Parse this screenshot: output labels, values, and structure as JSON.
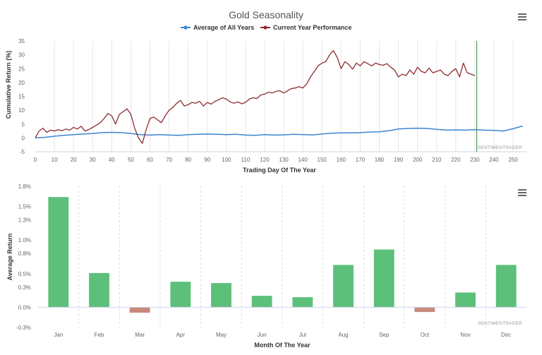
{
  "chart_data": [
    {
      "type": "line",
      "title": "Gold Seasonality",
      "xlabel": "Trading Day Of The Year",
      "ylabel": "Cumulative Return (%)",
      "xlim": [
        0,
        257
      ],
      "ylim": [
        -5,
        35
      ],
      "x_ticks": [
        0,
        10,
        20,
        30,
        40,
        50,
        60,
        70,
        80,
        90,
        100,
        110,
        120,
        130,
        140,
        150,
        160,
        170,
        180,
        190,
        200,
        210,
        220,
        230,
        240,
        250
      ],
      "y_ticks": [
        -5,
        0,
        5,
        10,
        15,
        20,
        25,
        30,
        35
      ],
      "grid": "vertical",
      "legend": "top-center",
      "credit": "SENTIMENTRADER",
      "marker_line_x": 231,
      "series": [
        {
          "name": "Average of All Years",
          "color": "#3a85d0",
          "points": [
            [
              0,
              0
            ],
            [
              5,
              0.2
            ],
            [
              10,
              0.6
            ],
            [
              15,
              0.9
            ],
            [
              20,
              1.2
            ],
            [
              25,
              1.4
            ],
            [
              30,
              1.6
            ],
            [
              35,
              1.9
            ],
            [
              40,
              2.0
            ],
            [
              45,
              1.9
            ],
            [
              50,
              1.6
            ],
            [
              55,
              1.2
            ],
            [
              60,
              1.0
            ],
            [
              65,
              1.2
            ],
            [
              70,
              1.0
            ],
            [
              75,
              0.9
            ],
            [
              80,
              1.2
            ],
            [
              85,
              1.3
            ],
            [
              90,
              1.4
            ],
            [
              95,
              1.3
            ],
            [
              100,
              1.2
            ],
            [
              105,
              1.3
            ],
            [
              110,
              1.0
            ],
            [
              115,
              0.9
            ],
            [
              120,
              1.2
            ],
            [
              125,
              1.0
            ],
            [
              130,
              1.1
            ],
            [
              135,
              1.3
            ],
            [
              140,
              1.2
            ],
            [
              145,
              1.1
            ],
            [
              150,
              1.4
            ],
            [
              155,
              1.7
            ],
            [
              160,
              1.8
            ],
            [
              165,
              1.8
            ],
            [
              170,
              1.9
            ],
            [
              175,
              2.1
            ],
            [
              180,
              2.2
            ],
            [
              185,
              2.6
            ],
            [
              190,
              3.2
            ],
            [
              195,
              3.4
            ],
            [
              200,
              3.5
            ],
            [
              205,
              3.4
            ],
            [
              210,
              3.1
            ],
            [
              215,
              2.8
            ],
            [
              220,
              2.9
            ],
            [
              225,
              2.8
            ],
            [
              230,
              3.0
            ],
            [
              235,
              2.8
            ],
            [
              240,
              2.7
            ],
            [
              245,
              2.5
            ],
            [
              250,
              3.3
            ],
            [
              255,
              4.3
            ]
          ]
        },
        {
          "name": "Current Year Performance",
          "color": "#8b2d30",
          "points": [
            [
              0,
              0
            ],
            [
              2,
              2.5
            ],
            [
              4,
              3.5
            ],
            [
              6,
              2.0
            ],
            [
              8,
              2.8
            ],
            [
              10,
              2.5
            ],
            [
              12,
              3.0
            ],
            [
              14,
              2.6
            ],
            [
              16,
              3.2
            ],
            [
              18,
              2.8
            ],
            [
              20,
              3.8
            ],
            [
              22,
              3.2
            ],
            [
              24,
              4.2
            ],
            [
              26,
              2.5
            ],
            [
              28,
              3.0
            ],
            [
              30,
              3.8
            ],
            [
              32,
              4.6
            ],
            [
              34,
              5.5
            ],
            [
              36,
              7.0
            ],
            [
              38,
              8.8
            ],
            [
              40,
              8.0
            ],
            [
              42,
              5.0
            ],
            [
              44,
              8.5
            ],
            [
              46,
              9.5
            ],
            [
              48,
              10.5
            ],
            [
              50,
              8.5
            ],
            [
              52,
              3.5
            ],
            [
              54,
              0.0
            ],
            [
              56,
              -2.0
            ],
            [
              58,
              3.0
            ],
            [
              60,
              7.0
            ],
            [
              62,
              7.5
            ],
            [
              64,
              6.5
            ],
            [
              66,
              5.5
            ],
            [
              68,
              8.0
            ],
            [
              70,
              10.0
            ],
            [
              72,
              11.0
            ],
            [
              74,
              12.5
            ],
            [
              76,
              13.5
            ],
            [
              78,
              11.5
            ],
            [
              80,
              12.0
            ],
            [
              82,
              12.8
            ],
            [
              84,
              12.5
            ],
            [
              86,
              13.2
            ],
            [
              88,
              11.5
            ],
            [
              90,
              12.8
            ],
            [
              92,
              12.2
            ],
            [
              94,
              13.2
            ],
            [
              96,
              13.8
            ],
            [
              98,
              14.5
            ],
            [
              100,
              14.0
            ],
            [
              102,
              13.0
            ],
            [
              104,
              12.5
            ],
            [
              106,
              13.0
            ],
            [
              108,
              12.3
            ],
            [
              110,
              12.8
            ],
            [
              112,
              14.0
            ],
            [
              114,
              14.5
            ],
            [
              116,
              14.2
            ],
            [
              118,
              15.5
            ],
            [
              120,
              15.8
            ],
            [
              122,
              16.5
            ],
            [
              124,
              16.2
            ],
            [
              126,
              16.8
            ],
            [
              128,
              17.0
            ],
            [
              130,
              16.2
            ],
            [
              132,
              17.0
            ],
            [
              134,
              17.8
            ],
            [
              136,
              18.0
            ],
            [
              138,
              18.5
            ],
            [
              140,
              18.0
            ],
            [
              142,
              19.5
            ],
            [
              144,
              22.0
            ],
            [
              146,
              24.0
            ],
            [
              148,
              26.0
            ],
            [
              150,
              27.0
            ],
            [
              152,
              27.5
            ],
            [
              154,
              30.0
            ],
            [
              156,
              31.5
            ],
            [
              158,
              29.0
            ],
            [
              160,
              25.0
            ],
            [
              162,
              27.5
            ],
            [
              164,
              26.5
            ],
            [
              166,
              24.8
            ],
            [
              168,
              27.0
            ],
            [
              170,
              26.0
            ],
            [
              172,
              27.5
            ],
            [
              174,
              26.8
            ],
            [
              176,
              26.0
            ],
            [
              178,
              27.0
            ],
            [
              180,
              26.5
            ],
            [
              182,
              26.2
            ],
            [
              184,
              26.8
            ],
            [
              186,
              25.5
            ],
            [
              188,
              24.5
            ],
            [
              190,
              22.0
            ],
            [
              192,
              23.0
            ],
            [
              194,
              22.5
            ],
            [
              196,
              24.5
            ],
            [
              198,
              23.0
            ],
            [
              200,
              25.5
            ],
            [
              202,
              24.0
            ],
            [
              204,
              23.5
            ],
            [
              206,
              25.2
            ],
            [
              208,
              23.5
            ],
            [
              210,
              24.0
            ],
            [
              212,
              24.5
            ],
            [
              214,
              23.0
            ],
            [
              216,
              22.5
            ],
            [
              218,
              24.0
            ],
            [
              220,
              25.0
            ],
            [
              222,
              22.0
            ],
            [
              224,
              27.0
            ],
            [
              226,
              23.5
            ],
            [
              228,
              23.0
            ],
            [
              230,
              22.5
            ]
          ]
        }
      ]
    },
    {
      "type": "bar",
      "xlabel": "Month Of The Year",
      "ylabel": "Average Return",
      "ylim": [
        -0.3,
        1.8
      ],
      "y_ticks": [
        -0.3,
        0.0,
        0.3,
        0.5,
        0.8,
        1.0,
        1.3,
        1.5,
        1.8
      ],
      "y_tick_labels": [
        "-0.3%",
        "0.0%",
        "0.3%",
        "0.5%",
        "0.8%",
        "1.0%",
        "1.3%",
        "1.5%",
        "1.8%"
      ],
      "grid": "vertical",
      "credit": "SENTIMENTRADER",
      "positive_color": "#5cbf7a",
      "negative_color": "#c98a7e",
      "categories": [
        "Jan",
        "Feb",
        "Mar",
        "Apr",
        "May",
        "Jun",
        "Jul",
        "Aug",
        "Sep",
        "Oct",
        "Nov",
        "Dec"
      ],
      "values": [
        1.64,
        0.51,
        -0.08,
        0.38,
        0.36,
        0.17,
        0.15,
        0.63,
        0.86,
        -0.07,
        0.22,
        0.63
      ]
    }
  ],
  "icons": {
    "menu_top": "hamburger-menu-icon",
    "menu_bottom": "hamburger-menu-icon"
  }
}
